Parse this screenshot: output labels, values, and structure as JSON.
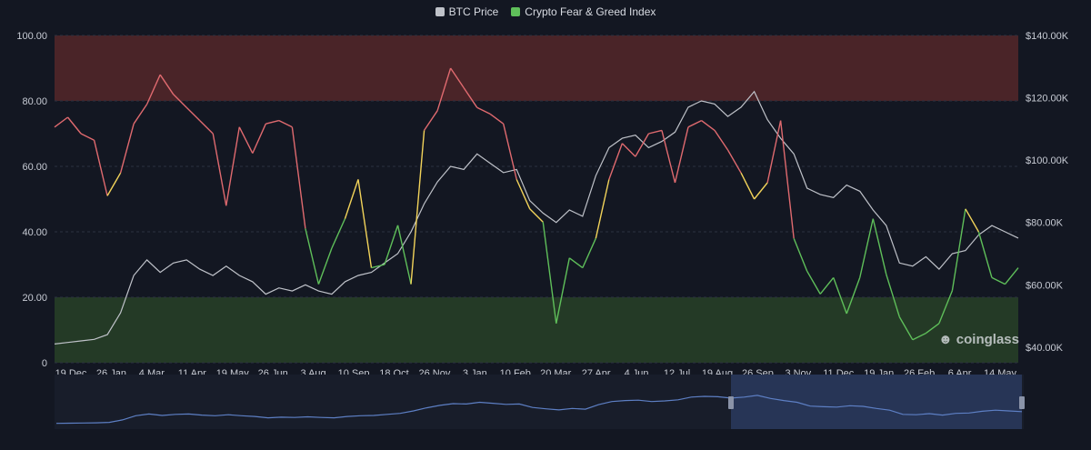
{
  "legend": {
    "btc_label": "BTC Price",
    "fng_label": "Crypto Fear & Greed Index"
  },
  "brand": {
    "name": "coinglass",
    "icon": "coinglass-logo-icon"
  },
  "colors": {
    "background": "#131722",
    "greed_zone": "#4a2428",
    "fear_zone": "#243a26",
    "btc_line": "#bfc2c9",
    "greed_line": "#e06a6f",
    "neutral_line": "#f2d35a",
    "fear_line": "#5fbf5a",
    "navigator_fill": "#2a3a5e"
  },
  "chart_data": {
    "type": "line",
    "title": "",
    "left_axis": {
      "ticks": [
        "0",
        "20.00",
        "40.00",
        "60.00",
        "80.00",
        "100.00"
      ],
      "range": [
        0,
        100
      ]
    },
    "right_axis": {
      "ticks": [
        "$40.00K",
        "$60.00K",
        "$80.00K",
        "$100.00K",
        "$120.00K",
        "$140.00K"
      ],
      "range": [
        35000,
        140000
      ]
    },
    "x_ticks": [
      "19 Dec",
      "26 Jan",
      "4 Mar",
      "11 Apr",
      "19 May",
      "26 Jun",
      "3 Aug",
      "10 Sep",
      "18 Oct",
      "26 Nov",
      "3 Jan",
      "10 Feb",
      "20 Mar",
      "27 Apr",
      "4 Jun",
      "12 Jul",
      "19 Aug",
      "26 Sep",
      "3 Nov",
      "11 Dec",
      "19 Jan",
      "26 Feb",
      "6 Apr",
      "14 May"
    ],
    "zones": [
      {
        "name": "greed",
        "from": 80,
        "to": 100
      },
      {
        "name": "fear",
        "from": 0,
        "to": 20
      }
    ],
    "series": [
      {
        "name": "BTC Price",
        "axis": "right",
        "values": [
          41000,
          41500,
          42000,
          42500,
          44000,
          51000,
          63000,
          68000,
          64000,
          67000,
          68000,
          65000,
          63000,
          66000,
          63000,
          61000,
          57000,
          59000,
          58000,
          60000,
          58000,
          57000,
          61000,
          63000,
          64000,
          67000,
          70000,
          77000,
          86000,
          93000,
          98000,
          97000,
          102000,
          99000,
          96000,
          97000,
          87000,
          83000,
          80000,
          84000,
          82000,
          95000,
          104000,
          107000,
          108000,
          104000,
          106000,
          109000,
          117000,
          119000,
          118000,
          114000,
          117000,
          122000,
          113000,
          107000,
          102000,
          91000,
          89000,
          88000,
          92000,
          90000,
          84000,
          79000,
          67000,
          66000,
          69000,
          65000,
          70000,
          71000,
          76000,
          79000,
          77000,
          75000
        ]
      },
      {
        "name": "Crypto Fear & Greed Index",
        "axis": "left",
        "values": [
          72,
          75,
          70,
          68,
          51,
          58,
          73,
          79,
          88,
          82,
          78,
          74,
          70,
          48,
          72,
          64,
          73,
          74,
          72,
          41,
          24,
          35,
          44,
          56,
          29,
          30,
          42,
          24,
          71,
          77,
          90,
          84,
          78,
          76,
          73,
          56,
          47,
          43,
          12,
          32,
          29,
          38,
          56,
          67,
          63,
          70,
          71,
          55,
          72,
          74,
          71,
          65,
          58,
          50,
          55,
          74,
          38,
          28,
          21,
          26,
          15,
          26,
          44,
          27,
          14,
          7,
          9,
          12,
          22,
          47,
          40,
          26,
          24,
          29
        ]
      }
    ],
    "grid": true,
    "legend_position": "top-center"
  }
}
